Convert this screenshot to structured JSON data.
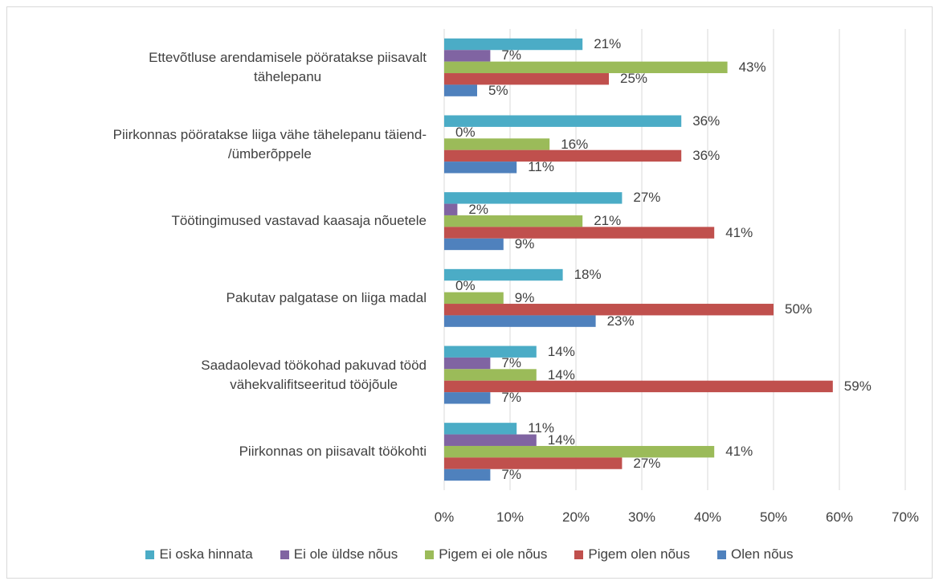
{
  "chart_data": {
    "type": "hbar",
    "categories": [
      "Ettevõtluse arendamisele pööratakse piisavalt\ntähelepanu",
      "Piirkonnas pööratakse liiga vähe tähelepanu täiend-\n/ümberõppele",
      "Töötingimused vastavad kaasaja nõuetele",
      "Pakutav palgatase on liiga madal",
      "Saadaolevad töökohad pakuvad tööd\nvähekvalifitseeritud tööjõule",
      "Piirkonnas on piisavalt töökohti"
    ],
    "series": [
      {
        "name": "Ei oska hinnata",
        "color": "#4bacc6",
        "values": [
          21,
          36,
          27,
          18,
          14,
          11
        ],
        "value_labels": [
          "21%",
          "36%",
          "27%",
          "18%",
          "14%",
          "11%"
        ]
      },
      {
        "name": "Ei ole üldse nõus",
        "color": "#8064a2",
        "values": [
          7,
          0,
          2,
          0,
          7,
          14
        ],
        "value_labels": [
          "7%",
          "0%",
          "2%",
          "0%",
          "7%",
          "14%"
        ]
      },
      {
        "name": "Pigem ei ole nõus",
        "color": "#9bbb59",
        "values": [
          43,
          16,
          21,
          9,
          14,
          41
        ],
        "value_labels": [
          "43%",
          "16%",
          "21%",
          "9%",
          "14%",
          "41%"
        ]
      },
      {
        "name": "Pigem olen nõus",
        "color": "#c0504d",
        "values": [
          25,
          36,
          41,
          50,
          59,
          27
        ],
        "value_labels": [
          "25%",
          "36%",
          "41%",
          "50%",
          "59%",
          "27%"
        ]
      },
      {
        "name": "Olen nõus",
        "color": "#4f81bd",
        "values": [
          5,
          11,
          9,
          23,
          7,
          7
        ],
        "value_labels": [
          "5%",
          "11%",
          "9%",
          "23%",
          "7%",
          "7%"
        ]
      }
    ],
    "xlim": [
      0,
      70
    ],
    "xticks": [
      {
        "value": 0,
        "label": "0%"
      },
      {
        "value": 10,
        "label": "10%"
      },
      {
        "value": 20,
        "label": "20%"
      },
      {
        "value": 30,
        "label": "30%"
      },
      {
        "value": 40,
        "label": "40%"
      },
      {
        "value": 50,
        "label": "50%"
      },
      {
        "value": 60,
        "label": "60%"
      },
      {
        "value": 70,
        "label": "70%"
      }
    ],
    "grid": true,
    "legend": "bottom"
  }
}
